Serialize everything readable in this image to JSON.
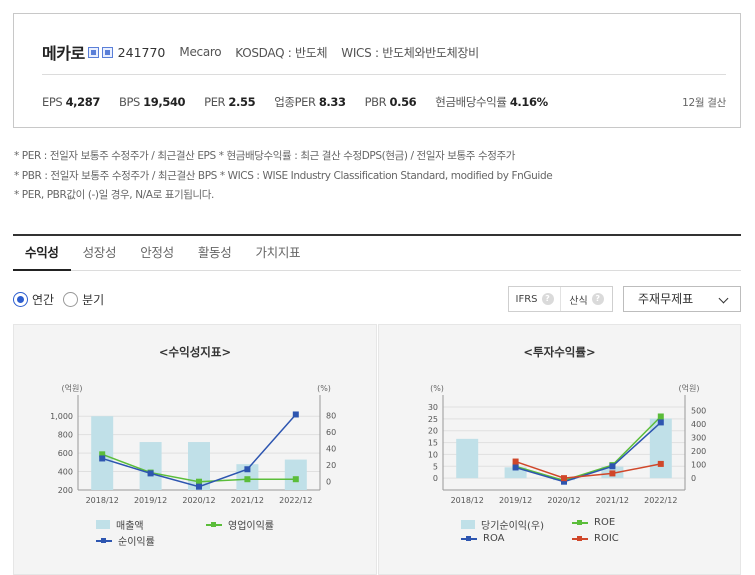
{
  "header": {
    "corp_name": "메카로",
    "code": "241770",
    "eng_name": "Mecaro",
    "market": "KOSDAQ : 반도체",
    "wics": "WICS : 반도체와반도체장비",
    "metrics": [
      {
        "label": "EPS",
        "value": "4,287"
      },
      {
        "label": "BPS",
        "value": "19,540"
      },
      {
        "label": "PER",
        "value": "2.55"
      },
      {
        "label": "업종PER",
        "value": "8.33"
      },
      {
        "label": "PBR",
        "value": "0.56"
      },
      {
        "label": "현금배당수익률",
        "value": "4.16%"
      }
    ],
    "settlement": "12월 결산"
  },
  "notes": [
    "* PER : 전일자 보통주 수정주가 / 최근결산 EPS * 현금배당수익률 : 최근 결산 수정DPS(현금) / 전일자 보통주 수정주가",
    "* PBR : 전일자 보통주 수정주가 / 최근결산 BPS * WICS : WISE Industry Classification Standard, modified by FnGuide",
    "* PER, PBR값이 (-)일 경우, N/A로 표기됩니다."
  ],
  "tabs": [
    {
      "label": "수익성",
      "active": true
    },
    {
      "label": "성장성",
      "active": false
    },
    {
      "label": "안정성",
      "active": false
    },
    {
      "label": "활동성",
      "active": false
    },
    {
      "label": "가치지표",
      "active": false
    }
  ],
  "period": {
    "annual": "연간",
    "quarter": "분기",
    "selected": "annual"
  },
  "standards": {
    "ifrs": "IFRS",
    "formula": "산식",
    "help": "?"
  },
  "select": {
    "value": "주재무제표"
  },
  "colors": {
    "bar": "#c0e0e8",
    "blue": "#2d55b0",
    "green": "#5bbd3a",
    "red": "#d0472a",
    "grid": "#e0e0e0"
  },
  "chart_data": [
    {
      "type": "bar+line",
      "title": "<수익성지표>",
      "categories": [
        "2018/12",
        "2019/12",
        "2020/12",
        "2021/12",
        "2022/12"
      ],
      "y_left": {
        "unit": "(억원)",
        "range": [
          200,
          1100
        ],
        "ticks": [
          200,
          400,
          600,
          800,
          "1,000"
        ]
      },
      "y_right": {
        "unit": "(%)",
        "range": [
          -10,
          90
        ],
        "ticks": [
          0,
          20,
          40,
          60,
          80
        ]
      },
      "bar_series": [
        {
          "name": "매출액",
          "axis": "left",
          "values": [
            1000,
            720,
            720,
            480,
            530
          ]
        }
      ],
      "line_series": [
        {
          "name": "영업이익률",
          "axis": "right",
          "color": "green",
          "values": [
            33,
            11,
            0,
            3,
            3
          ]
        },
        {
          "name": "순이익률",
          "axis": "right",
          "color": "blue",
          "values": [
            28,
            10,
            -6,
            15,
            81
          ]
        }
      ],
      "grid": true,
      "legend": "bottom"
    },
    {
      "type": "bar+line",
      "title": "<투자수익률>",
      "categories": [
        "2018/12",
        "2019/12",
        "2020/12",
        "2021/12",
        "2022/12"
      ],
      "y_left": {
        "unit": "(%)",
        "range": [
          -5,
          30
        ],
        "ticks": [
          0,
          5,
          10,
          15,
          20,
          25,
          30
        ]
      },
      "y_right": {
        "unit": "(억원)",
        "range": [
          -87.5,
          525
        ],
        "ticks": [
          0,
          100,
          200,
          300,
          400,
          500
        ]
      },
      "bar_series": [
        {
          "name": "당기순이익(우)",
          "axis": "right",
          "values": [
            290,
            80,
            -15,
            85,
            440
          ]
        }
      ],
      "line_series": [
        {
          "name": "ROE",
          "axis": "left",
          "color": "green",
          "values": [
            null,
            5,
            -1,
            5.5,
            26
          ]
        },
        {
          "name": "ROA",
          "axis": "left",
          "color": "blue",
          "values": [
            null,
            4.5,
            -1.5,
            5,
            23.5
          ]
        },
        {
          "name": "ROIC",
          "axis": "left",
          "color": "red",
          "values": [
            null,
            7,
            0,
            2,
            6
          ]
        }
      ],
      "grid": true,
      "legend": "bottom"
    }
  ]
}
